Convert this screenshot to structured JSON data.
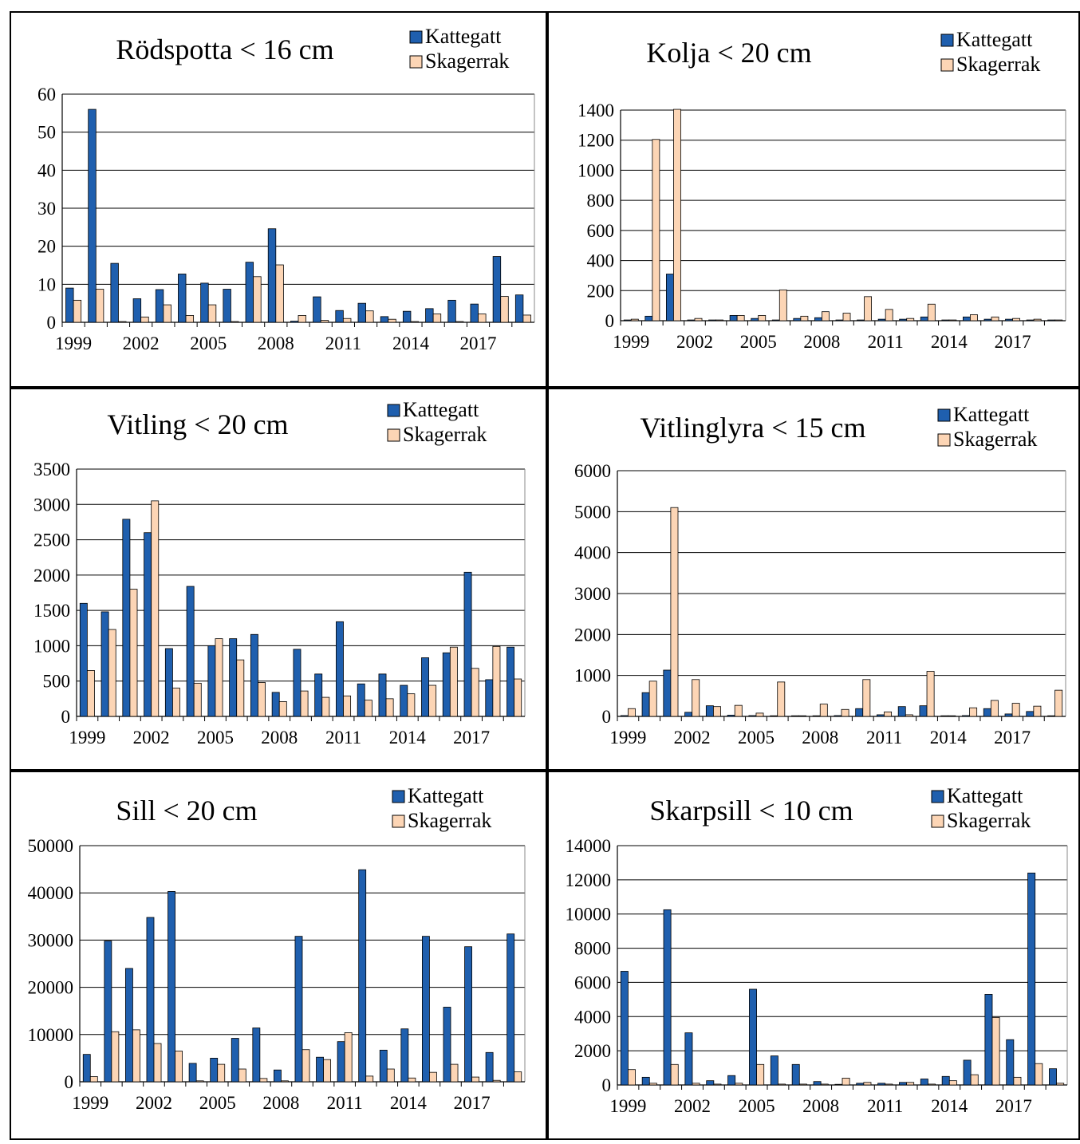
{
  "colors": {
    "kattegatt": "#1F5FAE",
    "skagerrak": "#FCD5B5",
    "outline": "#000000",
    "grid": "#000000"
  },
  "chart_data": [
    {
      "type": "bar",
      "title": "Rödspotta < 16 cm",
      "xlabel": "",
      "ylabel": "",
      "ylim": [
        0,
        60
      ],
      "yticks": [
        0,
        10,
        20,
        30,
        40,
        50,
        60
      ],
      "x": [
        1999,
        2000,
        2001,
        2002,
        2003,
        2004,
        2005,
        2006,
        2007,
        2008,
        2009,
        2010,
        2011,
        2012,
        2013,
        2014,
        2015,
        2016,
        2017,
        2018,
        2019
      ],
      "x_tick_labels": [
        "1999",
        "2002",
        "2005",
        "2008",
        "2011",
        "2014",
        "2017"
      ],
      "legend": "top-right",
      "grid": true,
      "series": [
        {
          "name": "Kattegatt",
          "values": [
            9,
            56,
            15.5,
            6.2,
            8.6,
            12.7,
            10.3,
            8.7,
            15.8,
            24.6,
            0.3,
            6.7,
            3.1,
            5.0,
            1.5,
            2.9,
            3.6,
            5.8,
            4.8,
            17.3,
            7.2
          ]
        },
        {
          "name": "Skagerrak",
          "values": [
            5.8,
            8.7,
            0.2,
            1.4,
            4.6,
            1.8,
            4.6,
            0.2,
            12.0,
            15.1,
            1.8,
            0.5,
            1.0,
            3.0,
            0.8,
            0.2,
            2.2,
            0.2,
            2.2,
            6.8,
            1.9
          ]
        }
      ]
    },
    {
      "type": "bar",
      "title": "Kolja < 20 cm",
      "xlabel": "",
      "ylabel": "",
      "ylim": [
        0,
        1400
      ],
      "yticks": [
        0,
        200,
        400,
        600,
        800,
        1000,
        1200,
        1400
      ],
      "x": [
        1999,
        2000,
        2001,
        2002,
        2003,
        2004,
        2005,
        2006,
        2007,
        2008,
        2009,
        2010,
        2011,
        2012,
        2013,
        2014,
        2015,
        2016,
        2017,
        2018,
        2019
      ],
      "x_tick_labels": [
        "1999",
        "2002",
        "2005",
        "2008",
        "2011",
        "2014",
        "2017"
      ],
      "legend": "top-right",
      "grid": true,
      "series": [
        {
          "name": "Kattegatt",
          "values": [
            5,
            30,
            310,
            5,
            5,
            35,
            15,
            5,
            15,
            20,
            5,
            5,
            10,
            10,
            25,
            5,
            25,
            10,
            10,
            5,
            5
          ]
        },
        {
          "name": "Skagerrak",
          "values": [
            10,
            1205,
            1405,
            15,
            5,
            35,
            35,
            205,
            30,
            60,
            50,
            160,
            75,
            15,
            110,
            5,
            40,
            25,
            15,
            10,
            5
          ]
        }
      ]
    },
    {
      "type": "bar",
      "title": "Vitling < 20 cm",
      "xlabel": "",
      "ylabel": "",
      "ylim": [
        0,
        3500
      ],
      "yticks": [
        0,
        500,
        1000,
        1500,
        2000,
        2500,
        3000,
        3500
      ],
      "x": [
        1999,
        2000,
        2001,
        2002,
        2003,
        2004,
        2005,
        2006,
        2007,
        2008,
        2009,
        2010,
        2011,
        2012,
        2013,
        2014,
        2015,
        2016,
        2017,
        2018,
        2019
      ],
      "x_tick_labels": [
        "1999",
        "2002",
        "2005",
        "2008",
        "2011",
        "2014",
        "2017"
      ],
      "legend": "top-right",
      "grid": true,
      "series": [
        {
          "name": "Kattegatt",
          "values": [
            1600,
            1480,
            2790,
            2600,
            960,
            1840,
            1000,
            1100,
            1160,
            340,
            950,
            600,
            1340,
            460,
            600,
            440,
            830,
            900,
            2040,
            520,
            980
          ]
        },
        {
          "name": "Skagerrak",
          "values": [
            650,
            1230,
            1800,
            3050,
            400,
            470,
            1100,
            800,
            480,
            210,
            360,
            270,
            290,
            230,
            250,
            320,
            440,
            980,
            680,
            990,
            530
          ]
        }
      ]
    },
    {
      "type": "bar",
      "title": "Vitlinglyra < 15 cm",
      "xlabel": "",
      "ylabel": "",
      "ylim": [
        0,
        6000
      ],
      "yticks": [
        0,
        1000,
        2000,
        3000,
        4000,
        5000,
        6000
      ],
      "x": [
        1999,
        2000,
        2001,
        2002,
        2003,
        2004,
        2005,
        2006,
        2007,
        2008,
        2009,
        2010,
        2011,
        2012,
        2013,
        2014,
        2015,
        2016,
        2017,
        2018,
        2019
      ],
      "x_tick_labels": [
        "1999",
        "2002",
        "2005",
        "2008",
        "2011",
        "2014",
        "2017"
      ],
      "legend": "top-right",
      "grid": true,
      "series": [
        {
          "name": "Kattegatt",
          "values": [
            20,
            580,
            1130,
            100,
            260,
            30,
            20,
            10,
            10,
            10,
            20,
            190,
            40,
            240,
            260,
            10,
            20,
            190,
            60,
            120,
            10
          ]
        },
        {
          "name": "Skagerrak",
          "values": [
            190,
            860,
            5100,
            900,
            240,
            270,
            80,
            840,
            10,
            300,
            170,
            900,
            110,
            40,
            1100,
            10,
            210,
            390,
            320,
            250,
            640
          ]
        }
      ]
    },
    {
      "type": "bar",
      "title": "Sill < 20 cm",
      "xlabel": "",
      "ylabel": "",
      "ylim": [
        0,
        50000
      ],
      "yticks": [
        0,
        10000,
        20000,
        30000,
        40000,
        50000
      ],
      "x": [
        1999,
        2000,
        2001,
        2002,
        2003,
        2004,
        2005,
        2006,
        2007,
        2008,
        2009,
        2010,
        2011,
        2012,
        2013,
        2014,
        2015,
        2016,
        2017,
        2018,
        2019
      ],
      "x_tick_labels": [
        "1999",
        "2002",
        "2005",
        "2008",
        "2011",
        "2014",
        "2017"
      ],
      "legend": "top-right",
      "grid": true,
      "series": [
        {
          "name": "Kattegatt",
          "values": [
            5800,
            29800,
            24000,
            34800,
            40300,
            3900,
            5000,
            9200,
            11400,
            2500,
            30800,
            5200,
            8500,
            44900,
            6700,
            11200,
            30800,
            15800,
            28600,
            6200,
            31300
          ]
        },
        {
          "name": "Skagerrak",
          "values": [
            1100,
            10600,
            11000,
            8100,
            6500,
            200,
            3700,
            2700,
            700,
            200,
            6800,
            4700,
            10400,
            1200,
            2700,
            800,
            2000,
            3700,
            1000,
            300,
            2100
          ]
        }
      ]
    },
    {
      "type": "bar",
      "title": "Skarpsill < 10 cm",
      "xlabel": "",
      "ylabel": "",
      "ylim": [
        0,
        14000
      ],
      "yticks": [
        0,
        2000,
        4000,
        6000,
        8000,
        10000,
        12000,
        14000
      ],
      "x": [
        1999,
        2000,
        2001,
        2002,
        2003,
        2004,
        2005,
        2006,
        2007,
        2008,
        2009,
        2010,
        2011,
        2012,
        2013,
        2014,
        2015,
        2016,
        2017,
        2018,
        2019
      ],
      "x_tick_labels": [
        "1999",
        "2002",
        "2005",
        "2008",
        "2011",
        "2014",
        "2017"
      ],
      "legend": "top-right",
      "grid": true,
      "series": [
        {
          "name": "Kattegatt",
          "values": [
            6650,
            450,
            10250,
            3050,
            250,
            550,
            5600,
            1700,
            1200,
            200,
            20,
            100,
            100,
            150,
            350,
            500,
            1450,
            5300,
            2650,
            12400,
            950
          ]
        },
        {
          "name": "Skagerrak",
          "values": [
            900,
            100,
            1200,
            100,
            50,
            100,
            1200,
            50,
            50,
            50,
            400,
            150,
            50,
            150,
            50,
            250,
            600,
            3950,
            450,
            1250,
            100
          ]
        }
      ]
    }
  ]
}
